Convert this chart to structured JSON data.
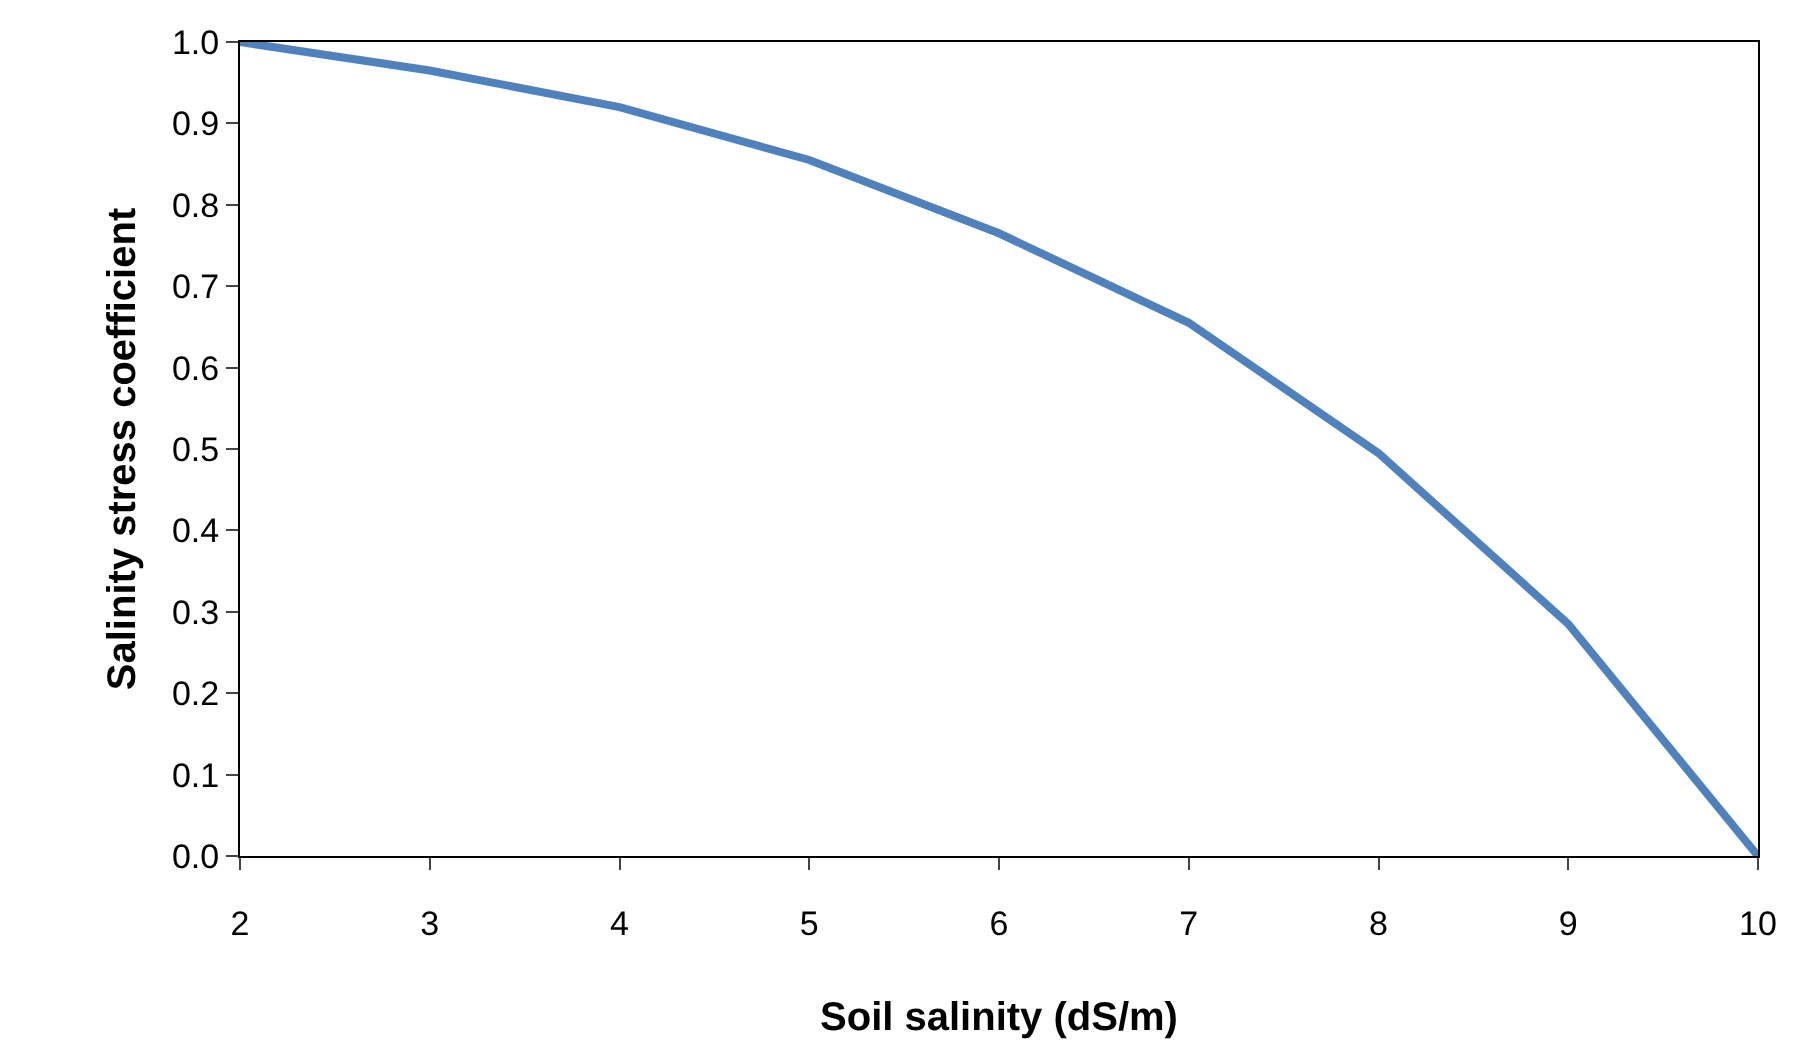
{
  "chart_data": {
    "type": "line",
    "xlabel": "Soil salinity (dS/m)",
    "ylabel": "Salinity stress coefficient",
    "x": [
      2,
      3,
      4,
      5,
      6,
      7,
      8,
      9,
      10
    ],
    "series": [
      {
        "color": "#4f81bd",
        "values": [
          1.0,
          0.965,
          0.92,
          0.855,
          0.765,
          0.655,
          0.495,
          0.285,
          0.0
        ]
      }
    ],
    "xlim": [
      2,
      10
    ],
    "xticks": [
      2,
      3,
      4,
      5,
      6,
      7,
      8,
      9,
      10
    ],
    "ylim": [
      0,
      1
    ],
    "yticks": [
      {
        "value": 0,
        "label": "0.0"
      },
      {
        "value": 0.1,
        "label": "0.1"
      },
      {
        "value": 0.2,
        "label": "0.2"
      },
      {
        "value": 0.3,
        "label": "0.3"
      },
      {
        "value": 0.4,
        "label": "0.4"
      },
      {
        "value": 0.5,
        "label": "0.5"
      },
      {
        "value": 0.6,
        "label": "0.6"
      },
      {
        "value": 0.7,
        "label": "0.7"
      },
      {
        "value": 0.8,
        "label": "0.8"
      },
      {
        "value": 0.9,
        "label": "0.9"
      },
      {
        "value": 1,
        "label": "1.0"
      }
    ],
    "marker": "none",
    "line_style": "solid"
  }
}
